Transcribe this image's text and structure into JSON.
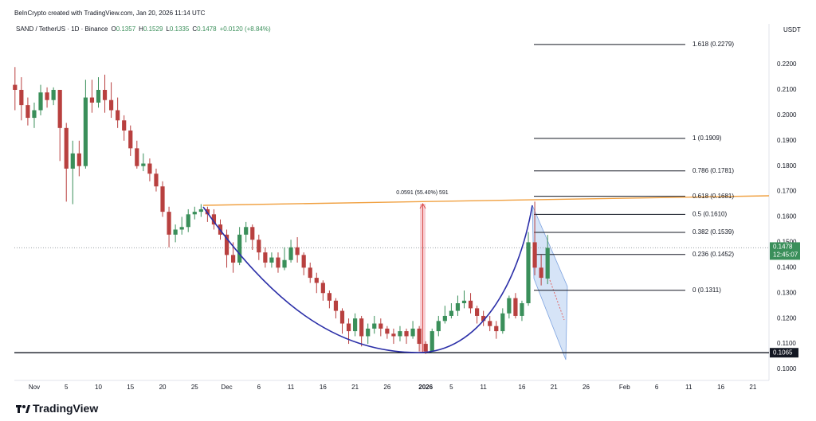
{
  "header": {
    "watermark": "BeInCrypto created with TradingView.com, Jan 20, 2026 11:14 UTC",
    "logo": "TradingView"
  },
  "chart_data": {
    "type": "candlestick",
    "symbol": "SAND / TetherUS · 1D · Binance",
    "ohlc": [
      {
        "key": "O",
        "value": 0.1357
      },
      {
        "key": "H",
        "value": 0.1529
      },
      {
        "key": "L",
        "value": 0.1335
      },
      {
        "key": "C",
        "value": 0.1478
      }
    ],
    "change": "+0.0120 (+8.84%)",
    "currency": "USDT",
    "rising_color": "#3a8f5a",
    "falling_color": "#b8403f",
    "x": [
      -3,
      -2,
      -1,
      0,
      1,
      2,
      3,
      4,
      5,
      6,
      7,
      8,
      9,
      10,
      11,
      12,
      13,
      14,
      15,
      16,
      17,
      18,
      19,
      20,
      21,
      22,
      23,
      24,
      25,
      26,
      27,
      28,
      29,
      30,
      31,
      32,
      33,
      34,
      35,
      36,
      37,
      38,
      39,
      40,
      41,
      42,
      43,
      44,
      45,
      46,
      47,
      48,
      49,
      50,
      51,
      52,
      53,
      54,
      55,
      56,
      57,
      58,
      59,
      60,
      61,
      62,
      63,
      64,
      65,
      66,
      67,
      68,
      69,
      70,
      71,
      72,
      73,
      74,
      75,
      76,
      77,
      78,
      79,
      80
    ],
    "open": [
      0.212,
      0.21,
      0.204,
      0.199,
      0.202,
      0.209,
      0.206,
      0.21,
      0.195,
      0.179,
      0.185,
      0.18,
      0.207,
      0.205,
      0.21,
      0.206,
      0.202,
      0.198,
      0.194,
      0.187,
      0.18,
      0.181,
      0.177,
      0.172,
      0.162,
      0.153,
      0.155,
      0.156,
      0.161,
      0.162,
      0.163,
      0.161,
      0.157,
      0.153,
      0.145,
      0.142,
      0.153,
      0.156,
      0.151,
      0.146,
      0.142,
      0.144,
      0.14,
      0.143,
      0.148,
      0.145,
      0.14,
      0.136,
      0.134,
      0.13,
      0.127,
      0.123,
      0.118,
      0.115,
      0.12,
      0.113,
      0.116,
      0.118,
      0.116,
      0.114,
      0.113,
      0.115,
      0.113,
      0.116,
      0.11,
      0.107,
      0.115,
      0.119,
      0.121,
      0.123,
      0.126,
      0.127,
      0.124,
      0.121,
      0.119,
      0.117,
      0.115,
      0.122,
      0.128,
      0.121,
      0.126,
      0.15,
      0.14,
      0.1357
    ],
    "high": [
      0.219,
      0.215,
      0.207,
      0.205,
      0.212,
      0.211,
      0.211,
      0.21,
      0.197,
      0.19,
      0.19,
      0.214,
      0.214,
      0.215,
      0.216,
      0.213,
      0.207,
      0.2,
      0.196,
      0.19,
      0.185,
      0.183,
      0.179,
      0.174,
      0.164,
      0.157,
      0.16,
      0.163,
      0.164,
      0.165,
      0.164,
      0.163,
      0.159,
      0.155,
      0.15,
      0.156,
      0.158,
      0.157,
      0.153,
      0.148,
      0.146,
      0.146,
      0.148,
      0.151,
      0.152,
      0.146,
      0.142,
      0.138,
      0.135,
      0.131,
      0.128,
      0.124,
      0.12,
      0.122,
      0.121,
      0.118,
      0.121,
      0.12,
      0.117,
      0.116,
      0.117,
      0.116,
      0.119,
      0.117,
      0.111,
      0.116,
      0.121,
      0.125,
      0.126,
      0.129,
      0.131,
      0.13,
      0.125,
      0.123,
      0.121,
      0.119,
      0.124,
      0.129,
      0.13,
      0.127,
      0.154,
      0.166,
      0.145,
      0.1529
    ],
    "low": [
      0.202,
      0.198,
      0.196,
      0.195,
      0.2,
      0.203,
      0.204,
      0.182,
      0.166,
      0.165,
      0.176,
      0.179,
      0.201,
      0.203,
      0.201,
      0.199,
      0.195,
      0.19,
      0.184,
      0.179,
      0.178,
      0.174,
      0.17,
      0.16,
      0.148,
      0.15,
      0.153,
      0.154,
      0.159,
      0.16,
      0.158,
      0.155,
      0.151,
      0.14,
      0.138,
      0.141,
      0.15,
      0.147,
      0.143,
      0.14,
      0.14,
      0.138,
      0.139,
      0.142,
      0.142,
      0.137,
      0.134,
      0.13,
      0.127,
      0.124,
      0.12,
      0.114,
      0.11,
      0.113,
      0.109,
      0.11,
      0.114,
      0.113,
      0.112,
      0.11,
      0.111,
      0.11,
      0.112,
      0.107,
      0.106,
      0.1065,
      0.113,
      0.118,
      0.12,
      0.121,
      0.124,
      0.122,
      0.118,
      0.117,
      0.115,
      0.112,
      0.114,
      0.12,
      0.12,
      0.119,
      0.125,
      0.137,
      0.133,
      0.1335
    ],
    "close": [
      0.21,
      0.204,
      0.199,
      0.202,
      0.209,
      0.206,
      0.21,
      0.195,
      0.179,
      0.185,
      0.18,
      0.207,
      0.205,
      0.21,
      0.206,
      0.202,
      0.198,
      0.194,
      0.187,
      0.18,
      0.181,
      0.177,
      0.172,
      0.162,
      0.153,
      0.155,
      0.156,
      0.161,
      0.162,
      0.163,
      0.161,
      0.157,
      0.153,
      0.145,
      0.142,
      0.153,
      0.156,
      0.151,
      0.146,
      0.142,
      0.144,
      0.14,
      0.143,
      0.148,
      0.145,
      0.14,
      0.136,
      0.134,
      0.13,
      0.127,
      0.123,
      0.118,
      0.115,
      0.12,
      0.113,
      0.116,
      0.118,
      0.116,
      0.114,
      0.113,
      0.115,
      0.113,
      0.116,
      0.11,
      0.107,
      0.115,
      0.119,
      0.121,
      0.123,
      0.126,
      0.127,
      0.124,
      0.121,
      0.119,
      0.117,
      0.115,
      0.122,
      0.128,
      0.121,
      0.126,
      0.15,
      0.14,
      0.136,
      0.1478
    ],
    "xlim": [
      -3.1,
      114.5
    ],
    "ylim": [
      0.0956,
      0.236
    ],
    "xticks": [
      {
        "value": 0,
        "label": "Nov"
      },
      5,
      10,
      15,
      20,
      25,
      {
        "value": 30,
        "label": "Dec"
      },
      {
        "value": 35,
        "label": "6"
      },
      {
        "value": 40,
        "label": "11"
      },
      {
        "value": 45,
        "label": "16"
      },
      {
        "value": 50,
        "label": "21"
      },
      {
        "value": 55,
        "label": "26"
      },
      {
        "value": 61,
        "label": "2026"
      },
      {
        "value": 65,
        "label": "5"
      },
      {
        "value": 70,
        "label": "11"
      },
      {
        "value": 76,
        "label": "16"
      },
      {
        "value": 81,
        "label": "21"
      },
      {
        "value": 86,
        "label": "26"
      },
      {
        "value": 92,
        "label": "Feb"
      },
      {
        "value": 97,
        "label": "6"
      },
      {
        "value": 102,
        "label": "11"
      },
      {
        "value": 107,
        "label": "16"
      },
      {
        "value": 112,
        "label": "21"
      }
    ],
    "yticks": [
      {
        "value": 0.22,
        "label": "0.2200"
      },
      {
        "value": 0.21,
        "label": "0.2100"
      },
      {
        "value": 0.2,
        "label": "0.2000"
      },
      {
        "value": 0.19,
        "label": "0.1900"
      },
      {
        "value": 0.18,
        "label": "0.1800"
      },
      {
        "value": 0.17,
        "label": "0.1700"
      },
      {
        "value": 0.16,
        "label": "0.1600"
      },
      {
        "value": 0.15,
        "label": "0.1500"
      },
      {
        "value": 0.14,
        "label": "0.1400"
      },
      {
        "value": 0.13,
        "label": "0.1300"
      },
      {
        "value": 0.12,
        "label": "0.1200"
      },
      {
        "value": 0.11,
        "label": "0.1100"
      },
      {
        "value": 0.1,
        "label": "0.1000"
      }
    ],
    "fib_levels": [
      {
        "value": 0.2279,
        "label": "1.618 (0.2279)"
      },
      {
        "value": 0.1909,
        "label": "1 (0.1909)"
      },
      {
        "value": 0.1781,
        "label": "0.786 (0.1781)"
      },
      {
        "value": 0.1681,
        "label": "0.618 (0.1681)"
      },
      {
        "value": 0.161,
        "label": "0.5 (0.1610)"
      },
      {
        "value": 0.1539,
        "label": "0.382 (0.1539)"
      },
      {
        "value": 0.1452,
        "label": "0.236 (0.1452)"
      },
      {
        "value": 0.1311,
        "label": "0 (0.1311)"
      }
    ],
    "last_price": {
      "value": 0.1478,
      "label": "0.1478",
      "countdown": "12:45:07"
    },
    "support": {
      "value": 0.1065,
      "label": "0.1065"
    },
    "measure_label": "0.0591 (55.40%) 591"
  }
}
